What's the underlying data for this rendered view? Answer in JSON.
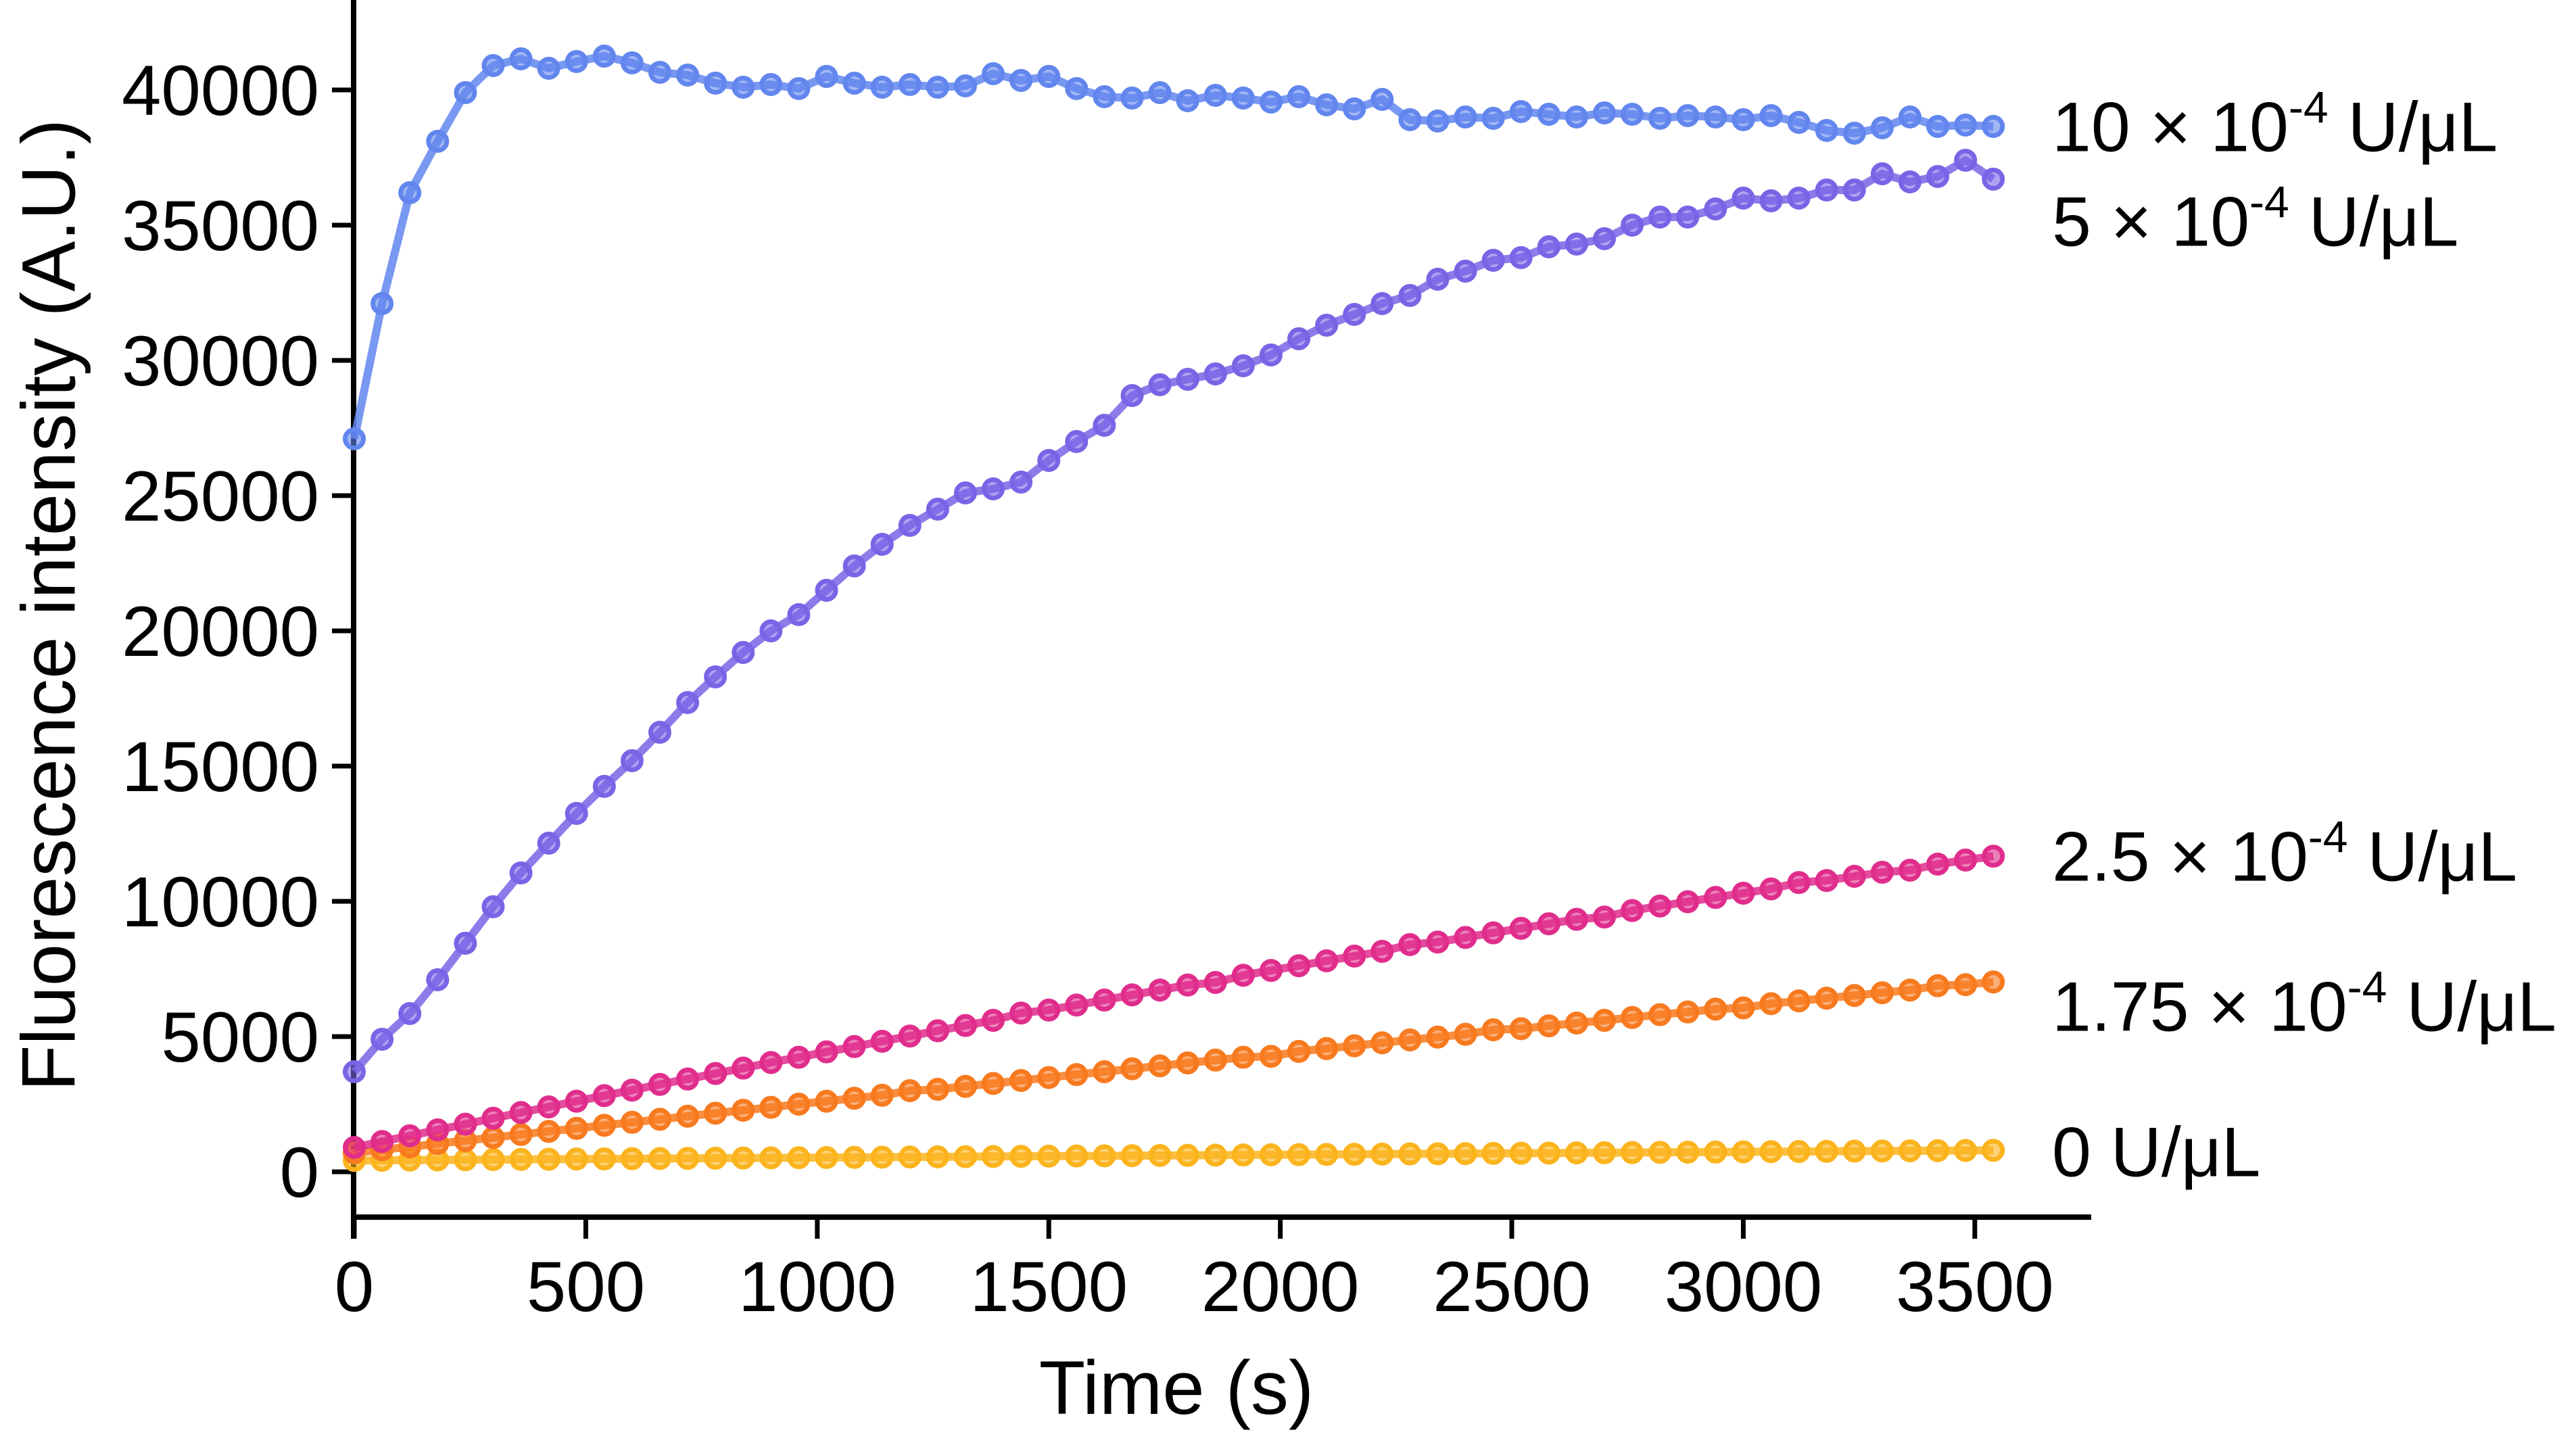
{
  "figure_background": "#ffffff",
  "axis_color": "#000000",
  "chart_data": {
    "type": "line",
    "title": "",
    "xlabel": "Time (s)",
    "ylabel": "Fluorescence intensity (A.U.)",
    "xlim": [
      0,
      3660
    ],
    "ylim": [
      0,
      43300
    ],
    "grid": false,
    "legend_position": "right-of-curve annotations",
    "x_ticks": [
      0,
      500,
      1000,
      1500,
      2000,
      2500,
      3000,
      3500
    ],
    "y_ticks": [
      0,
      5000,
      10000,
      15000,
      20000,
      25000,
      30000,
      35000,
      40000
    ],
    "x": [
      0,
      60,
      120,
      180,
      240,
      300,
      360,
      420,
      480,
      540,
      600,
      660,
      720,
      780,
      840,
      900,
      960,
      1020,
      1080,
      1140,
      1200,
      1260,
      1320,
      1380,
      1440,
      1500,
      1560,
      1620,
      1680,
      1740,
      1800,
      1860,
      1920,
      1980,
      2040,
      2100,
      2160,
      2220,
      2280,
      2340,
      2400,
      2460,
      2520,
      2580,
      2640,
      2700,
      2760,
      2820,
      2880,
      2940,
      3000,
      3060,
      3120,
      3180,
      3240,
      3300,
      3360,
      3420,
      3480,
      3540
    ],
    "series": [
      {
        "id": "c0",
        "label_base": "0",
        "label_exp": "",
        "label_unit": " U/μL",
        "label_full": "0 U/μL",
        "label_v": 750,
        "color": "#FBB41D",
        "values": [
          420,
          426,
          433,
          439,
          445,
          452,
          458,
          464,
          471,
          477,
          483,
          490,
          496,
          502,
          509,
          515,
          521,
          528,
          534,
          540,
          547,
          553,
          559,
          566,
          572,
          578,
          585,
          591,
          597,
          604,
          610,
          616,
          623,
          629,
          635,
          642,
          648,
          654,
          661,
          667,
          673,
          680,
          686,
          692,
          699,
          705,
          711,
          718,
          724,
          730,
          737,
          743,
          749,
          756,
          762,
          768,
          775,
          781,
          787,
          794
        ]
      },
      {
        "id": "c1_75",
        "label_base": "1.75 × 10",
        "label_exp": "-4",
        "label_unit": " U/μL",
        "label_full": "1.75 × 10⁻⁴ U/μL",
        "label_v": 6125,
        "color": "#F87A1F",
        "values": [
          700,
          815,
          925,
          1040,
          1155,
          1265,
          1380,
          1495,
          1605,
          1720,
          1830,
          1940,
          2055,
          2165,
          2275,
          2385,
          2500,
          2610,
          2720,
          2830,
          3000,
          3050,
          3160,
          3265,
          3375,
          3485,
          3595,
          3700,
          3810,
          3915,
          4025,
          4130,
          4235,
          4270,
          4450,
          4555,
          4660,
          4770,
          4875,
          4980,
          5085,
          5250,
          5290,
          5395,
          5500,
          5600,
          5705,
          5810,
          5910,
          6015,
          6060,
          6215,
          6320,
          6420,
          6520,
          6620,
          6720,
          6880,
          6920,
          7020
        ]
      },
      {
        "id": "c2_5",
        "label_base": "2.5 × 10",
        "label_exp": "-4",
        "label_unit": " U/μL",
        "label_full": "2.5 × 10⁻⁴ U/μL",
        "label_v": 11675,
        "color": "#E02D8C",
        "values": [
          900,
          1120,
          1330,
          1550,
          1760,
          1980,
          2190,
          2400,
          2610,
          2815,
          3020,
          3230,
          3430,
          3635,
          3835,
          4040,
          4235,
          4435,
          4630,
          4825,
          5020,
          5215,
          5410,
          5600,
          5870,
          5980,
          6165,
          6350,
          6540,
          6720,
          6905,
          7000,
          7265,
          7445,
          7620,
          7800,
          7975,
          8150,
          8400,
          8495,
          8665,
          8835,
          9000,
          9170,
          9335,
          9420,
          9660,
          9825,
          9985,
          10145,
          10300,
          10460,
          10695,
          10770,
          10925,
          11075,
          11150,
          11375,
          11525,
          11670
        ]
      },
      {
        "id": "c5",
        "label_base": "5 × 10",
        "label_exp": "-4",
        "label_unit": " U/μL",
        "label_full": "5 × 10⁻⁴ U/μL",
        "label_v": 35150,
        "color": "#7A64E6",
        "values": [
          3700,
          4900,
          5850,
          7100,
          8450,
          9800,
          11050,
          12150,
          13250,
          14250,
          15200,
          16250,
          17350,
          18300,
          19200,
          20000,
          20600,
          21500,
          22400,
          23200,
          23900,
          24500,
          25100,
          25250,
          25500,
          26300,
          27000,
          27600,
          28700,
          29100,
          29300,
          29500,
          29800,
          30200,
          30800,
          31300,
          31700,
          32100,
          32400,
          33000,
          33300,
          33700,
          33800,
          34200,
          34300,
          34500,
          35000,
          35300,
          35300,
          35600,
          36000,
          35900,
          36000,
          36300,
          36300,
          36900,
          36600,
          36800,
          37400,
          36700
        ]
      },
      {
        "id": "c10",
        "label_base": "10 × 10",
        "label_exp": "-4",
        "label_unit": " U/μL",
        "label_full": "10 × 10⁻⁴ U/μL",
        "label_v": 38650,
        "color": "#6286EE",
        "values": [
          27100,
          32100,
          36200,
          38100,
          39900,
          40900,
          41150,
          40800,
          41050,
          41250,
          41000,
          40650,
          40550,
          40250,
          40100,
          40200,
          40050,
          40500,
          40250,
          40100,
          40200,
          40100,
          40150,
          40600,
          40350,
          40500,
          40050,
          39750,
          39700,
          39900,
          39600,
          39800,
          39700,
          39550,
          39750,
          39450,
          39300,
          39650,
          38900,
          38850,
          39000,
          38950,
          39200,
          39100,
          39000,
          39150,
          39100,
          38950,
          39050,
          39000,
          38900,
          39050,
          38800,
          38500,
          38400,
          38600,
          39000,
          38650,
          38700,
          38650
        ]
      }
    ]
  }
}
